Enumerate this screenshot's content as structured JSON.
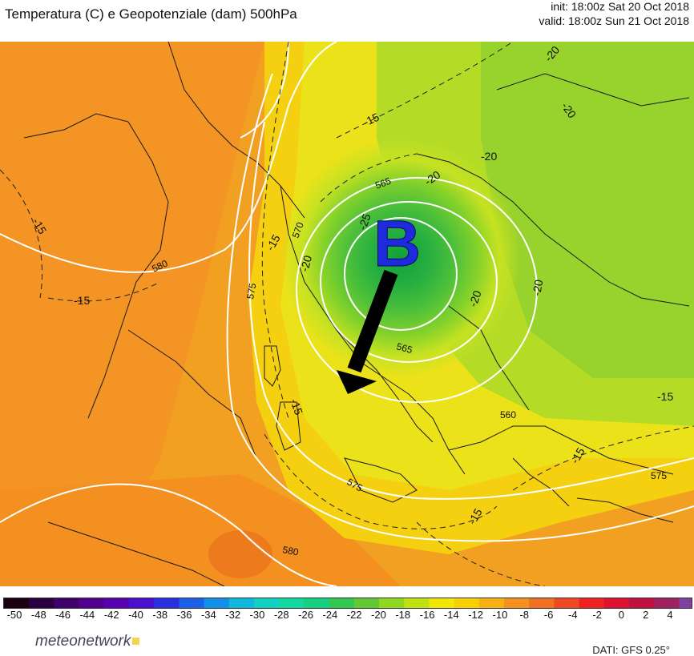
{
  "header": {
    "title": "Temperatura (C) e Geopotenziale (dam) 500hPa",
    "init": "init: 18:00z Sat 20 Oct 2018",
    "valid": "valid: 18:00z Sun 21 Oct 2018"
  },
  "map": {
    "low_marker": "B",
    "arrow_direction": "south-southwest",
    "colors": {
      "background": "#f0a020",
      "warm": "#f39220",
      "yellow": "#f5e000",
      "green_light": "#a8dc2a",
      "green_mid": "#5cc438",
      "green_dark": "#22a640",
      "marker": "#1e2bdc",
      "arrow": "#000000"
    },
    "geopotential_labels": [
      "580",
      "575",
      "570",
      "565",
      "565",
      "560",
      "575",
      "575",
      "580"
    ],
    "temperature_labels": [
      "-15",
      "-15",
      "-15",
      "-15",
      "-15",
      "-15",
      "-15",
      "-15",
      "-20",
      "-20",
      "-20",
      "-20",
      "-20",
      "-20",
      "-25",
      "-20"
    ]
  },
  "colorbar": {
    "ticks": [
      "-50",
      "-48",
      "-46",
      "-44",
      "-42",
      "-40",
      "-38",
      "-36",
      "-34",
      "-32",
      "-30",
      "-28",
      "-26",
      "-24",
      "-22",
      "-20",
      "-18",
      "-16",
      "-14",
      "-12",
      "-10",
      "-8",
      "-6",
      "-4",
      "-2",
      "0",
      "2",
      "4"
    ],
    "colors": [
      "#1a0010",
      "#2a0040",
      "#40006a",
      "#520090",
      "#5a00b4",
      "#4a10d0",
      "#2a30e0",
      "#1a60e8",
      "#1090e8",
      "#10b8e0",
      "#10d0c0",
      "#10d8a0",
      "#14d080",
      "#30c850",
      "#60c830",
      "#90d820",
      "#c0e010",
      "#f0e800",
      "#f8d000",
      "#f8b010",
      "#f89020",
      "#f07020",
      "#f04820",
      "#f02020",
      "#e01030",
      "#c01040",
      "#a02060",
      "#8040a0"
    ]
  },
  "footer": {
    "brand": "meteonetwork",
    "source": "DATI: GFS 0.25°"
  }
}
